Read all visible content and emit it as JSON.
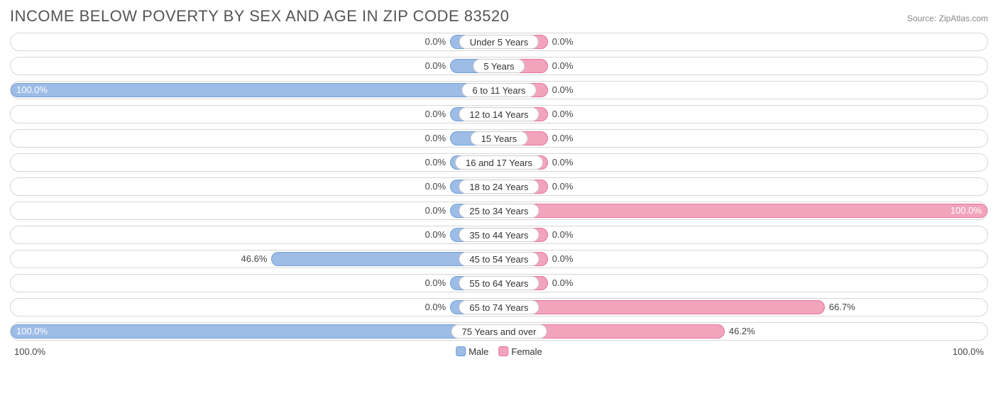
{
  "title": "INCOME BELOW POVERTY BY SEX AND AGE IN ZIP CODE 83520",
  "source": "Source: ZipAtlas.com",
  "chart": {
    "type": "diverging-bar",
    "male_fill": "#9dbce6",
    "male_border": "#6f9fd8",
    "female_fill": "#f3a4bd",
    "female_border": "#e57399",
    "track_border": "#d6d6d6",
    "track_bg": "#ffffff",
    "min_bar_pct": 10,
    "value_fontsize": 13,
    "category_fontsize": 13,
    "title_fontsize": 22,
    "title_color": "#555555",
    "categories": [
      "Under 5 Years",
      "5 Years",
      "6 to 11 Years",
      "12 to 14 Years",
      "15 Years",
      "16 and 17 Years",
      "18 to 24 Years",
      "25 to 34 Years",
      "35 to 44 Years",
      "45 to 54 Years",
      "55 to 64 Years",
      "65 to 74 Years",
      "75 Years and over"
    ],
    "male": [
      0.0,
      0.0,
      100.0,
      0.0,
      0.0,
      0.0,
      0.0,
      0.0,
      0.0,
      46.6,
      0.0,
      0.0,
      100.0
    ],
    "female": [
      0.0,
      0.0,
      0.0,
      0.0,
      0.0,
      0.0,
      0.0,
      100.0,
      0.0,
      0.0,
      0.0,
      66.7,
      46.2
    ],
    "axis_left": "100.0%",
    "axis_right": "100.0%",
    "legend_male": "Male",
    "legend_female": "Female"
  }
}
